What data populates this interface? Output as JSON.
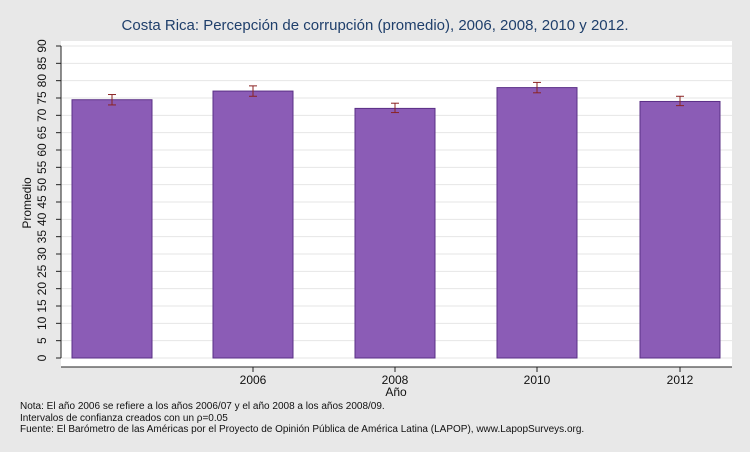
{
  "chart_data": {
    "type": "bar",
    "title": "Costa Rica: Percepción de corrupción (promedio), 2006, 2008, 2010 y 2012.",
    "xlabel": "Año",
    "ylabel": "Promedio",
    "categories": [
      "",
      "2006",
      "2008",
      "2010",
      "2012"
    ],
    "values": [
      74.5,
      77.0,
      72.0,
      78.0,
      74.0
    ],
    "error_low": [
      73.0,
      75.5,
      70.8,
      76.5,
      72.8
    ],
    "error_high": [
      76.0,
      78.5,
      73.5,
      79.5,
      75.5
    ],
    "ylim": [
      0,
      90
    ],
    "yticks": [
      0,
      5,
      10,
      15,
      20,
      25,
      30,
      35,
      40,
      45,
      50,
      55,
      60,
      65,
      70,
      75,
      80,
      85,
      90
    ],
    "bar_color": "#8b5cb6",
    "error_color": "#8b2323",
    "grid": true
  },
  "notes": {
    "line1": "Nota: El año 2006 se refiere a los años 2006/07 y el año 2008 a los años 2008/09.",
    "line2": "Intervalos de confianza creados con un ρ=0.05",
    "line3": "Fuente: El Barómetro de las Américas por el Proyecto de Opinión Pública de América Latina (LAPOP), www.LapopSurveys.org."
  }
}
